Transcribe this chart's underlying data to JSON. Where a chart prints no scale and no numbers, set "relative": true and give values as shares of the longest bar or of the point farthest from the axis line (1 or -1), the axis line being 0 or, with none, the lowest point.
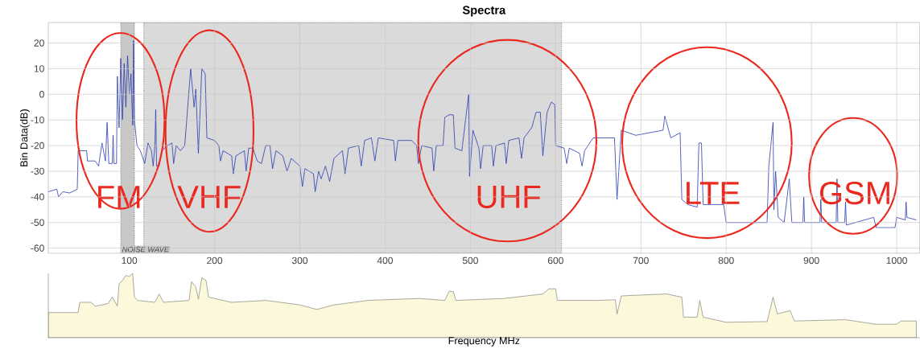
{
  "chart_data": [
    {
      "type": "line",
      "title": "Spectra",
      "ylabel": "Bin Data(dB)",
      "color": "#2a3bb0",
      "grid": true,
      "xlim": [
        5,
        1027
      ],
      "ylim": [
        -62,
        28
      ],
      "xticks": [
        100,
        200,
        300,
        400,
        500,
        600,
        700,
        800,
        900,
        1000
      ],
      "yticks": [
        -60,
        -50,
        -40,
        -30,
        -20,
        -10,
        0,
        10,
        20
      ],
      "bands": [
        {
          "axis": "x",
          "from": 90,
          "to": 106,
          "label": "NOISE WAVE",
          "color": "#c8c8c8"
        },
        {
          "axis": "x",
          "from": 117,
          "to": 607,
          "label": null,
          "color": "#dadada"
        }
      ],
      "annotations": [
        "FM",
        "VHF",
        "UHF",
        "LTE",
        "GSM"
      ],
      "x": [
        5,
        15,
        17,
        22,
        30,
        39,
        40,
        50,
        51,
        60,
        64,
        68,
        72,
        74,
        76,
        80,
        81,
        82,
        85,
        86,
        88,
        90,
        92,
        94,
        96,
        98,
        100,
        102,
        104,
        105,
        106,
        109,
        113,
        118,
        122,
        126,
        128,
        130,
        131,
        132,
        135,
        138,
        145,
        150,
        152,
        155,
        160,
        165,
        172,
        176,
        178,
        181,
        185,
        189,
        191,
        200,
        205,
        207,
        210,
        220,
        222,
        225,
        235,
        237,
        240,
        245,
        250,
        255,
        260,
        265,
        268,
        272,
        280,
        285,
        290,
        300,
        303,
        306,
        316,
        318,
        322,
        325,
        330,
        335,
        340,
        350,
        353,
        357,
        369,
        372,
        376,
        384,
        388,
        392,
        410,
        412,
        415,
        431,
        437,
        439,
        443,
        455,
        457,
        460,
        468,
        470,
        475,
        480,
        482,
        490,
        498,
        499,
        503,
        510,
        512,
        515,
        525,
        527,
        530,
        540,
        542,
        545,
        557,
        560,
        563,
        572,
        577,
        582,
        585,
        590,
        595,
        599,
        600,
        610,
        613,
        616,
        628,
        631,
        634,
        644,
        669,
        672,
        677,
        694,
        710,
        726,
        728,
        735,
        746,
        748,
        755,
        766,
        768,
        771,
        773,
        797,
        800,
        848,
        850,
        855,
        856,
        858,
        861,
        868,
        874,
        877,
        890,
        891,
        892,
        910,
        911,
        912,
        929,
        930,
        931,
        939,
        940,
        941,
        973,
        976,
        998,
        1000,
        1010,
        1011,
        1012,
        1023
      ],
      "values": [
        -38,
        -37,
        -40,
        -38,
        -38.5,
        -37,
        -22,
        -22,
        -26,
        -26,
        -28,
        -19,
        -26,
        -11,
        -27,
        -27,
        -16,
        -27,
        -27,
        7,
        -13,
        14,
        -10,
        12,
        -5,
        15,
        0,
        8,
        -12,
        21,
        -10,
        -20,
        -22,
        -27,
        -19,
        -22,
        -28,
        -20,
        -6,
        -28,
        -28,
        -22,
        -20,
        -19,
        -27,
        -20,
        -22,
        -20,
        10,
        -5,
        2,
        -23,
        10,
        8,
        -17,
        -18,
        -20,
        -26,
        -22,
        -24,
        -31,
        -24,
        -22,
        -30,
        -21,
        -21,
        -26,
        -27,
        -20,
        -20,
        -29,
        -22,
        -24,
        -30,
        -25,
        -28,
        -36,
        -29,
        -31,
        -38,
        -30,
        -33,
        -28,
        -34,
        -25,
        -22,
        -31,
        -21,
        -20,
        -28,
        -18,
        -17,
        -26,
        -17,
        -18,
        -26,
        -18,
        -18,
        -20,
        -27,
        -20,
        -21,
        -30,
        -20,
        -20,
        -9,
        -8,
        -8,
        -21,
        -22,
        0,
        -32,
        -14,
        -21,
        -29,
        -20,
        -20,
        -28,
        -20,
        -19,
        -27,
        -18,
        -17,
        -25,
        -17,
        -13,
        -7,
        -7,
        -24,
        -7,
        -3,
        -4,
        -20,
        -21,
        -27,
        -21,
        -23,
        -28,
        -22,
        -17,
        -17,
        -41,
        -14,
        -16,
        -15,
        -14,
        -8.5,
        -17,
        -15,
        -41,
        -43,
        -44,
        -19,
        -19,
        -43,
        -43,
        -50,
        -50,
        -28,
        -11,
        -45,
        -30,
        -48,
        -50,
        -33,
        -50,
        -50,
        -40,
        -50,
        -50,
        -41,
        -50,
        -50,
        -33,
        -50,
        -50,
        -42,
        -51,
        -48,
        -52,
        -52,
        -48,
        -49,
        -42,
        -48,
        -49
      ]
    },
    {
      "type": "area",
      "relative": true,
      "xlabel": "Frequency MHz",
      "color": "#fbf8dc",
      "xlim": [
        5,
        1027
      ],
      "x": [
        5,
        40,
        42,
        55,
        60,
        75,
        80,
        86,
        88,
        92,
        96,
        100,
        104,
        106,
        110,
        130,
        135,
        140,
        170,
        173,
        178,
        181,
        185,
        190,
        193,
        220,
        260,
        300,
        320,
        340,
        380,
        440,
        470,
        475,
        480,
        483,
        540,
        585,
        592,
        600,
        602,
        650,
        670,
        672,
        677,
        730,
        748,
        750,
        766,
        769,
        773,
        800,
        848,
        855,
        860,
        875,
        880,
        940,
        975,
        1000,
        1005,
        1023
      ],
      "values": [
        0.39,
        0.39,
        0.55,
        0.55,
        0.49,
        0.53,
        0.63,
        0.49,
        0.84,
        0.89,
        0.97,
        0.95,
        1,
        0.63,
        0.58,
        0.55,
        0.68,
        0.55,
        0.58,
        0.87,
        0.79,
        0.6,
        0.93,
        0.89,
        0.63,
        0.55,
        0.58,
        0.51,
        0.44,
        0.51,
        0.58,
        0.61,
        0.58,
        0.72,
        0.72,
        0.58,
        0.61,
        0.68,
        0.76,
        0.76,
        0.58,
        0.58,
        0.59,
        0.37,
        0.65,
        0.68,
        0.63,
        0.32,
        0.32,
        0.58,
        0.32,
        0.24,
        0.25,
        0.63,
        0.37,
        0.42,
        0.26,
        0.28,
        0.21,
        0.21,
        0.26,
        0.26
      ]
    }
  ]
}
